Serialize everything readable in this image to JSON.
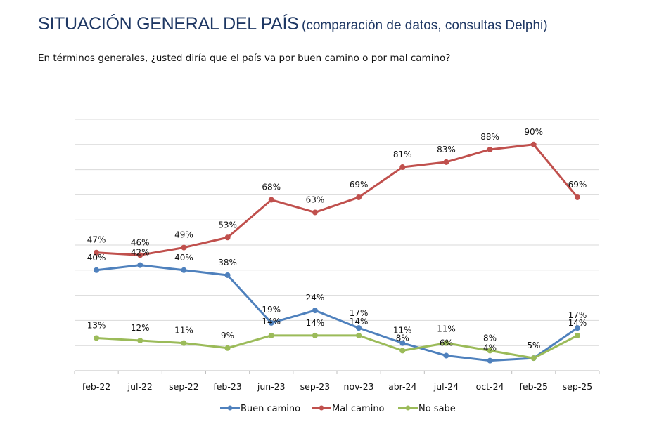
{
  "header": {
    "title": "SITUACIÓN GENERAL DEL PAÍS",
    "subtitle": "(comparación de datos, consultas Delphi)",
    "question": "En términos generales, ¿usted diría que el país va por buen camino o por mal camino?"
  },
  "chart_data": {
    "type": "line",
    "title": "SITUACIÓN GENERAL DEL PAÍS (comparación de datos, consultas Delphi)",
    "subtitle": "En términos generales, ¿usted diría que el país va por buen camino o por mal camino?",
    "xlabel": "",
    "ylabel": "",
    "ylim": [
      0,
      100
    ],
    "y_gridlines": 10,
    "grid": true,
    "y_tick_labels_visible": false,
    "legend_position": "bottom",
    "categories": [
      "feb-22",
      "jul-22",
      "sep-22",
      "feb-23",
      "jun-23",
      "sep-23",
      "nov-23",
      "abr-24",
      "jul-24",
      "oct-24",
      "feb-25",
      "sep-25"
    ],
    "series": [
      {
        "name": "Buen camino",
        "color": "#4f81bd",
        "values": [
          40,
          42,
          40,
          38,
          19,
          24,
          17,
          11,
          6,
          4,
          5,
          17
        ]
      },
      {
        "name": "Mal camino",
        "color": "#c0504d",
        "values": [
          47,
          46,
          49,
          53,
          68,
          63,
          69,
          81,
          83,
          88,
          90,
          69
        ]
      },
      {
        "name": "No sabe",
        "color": "#9bbb59",
        "values": [
          13,
          12,
          11,
          9,
          14,
          14,
          14,
          8,
          11,
          8,
          5,
          14
        ]
      }
    ],
    "value_label_suffix": "%"
  }
}
